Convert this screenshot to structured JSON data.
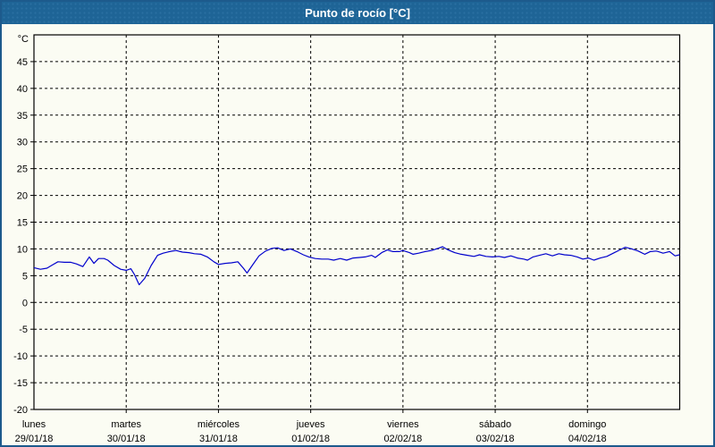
{
  "window": {
    "title": "Punto de rocío [°C]"
  },
  "colors": {
    "header_bg": "#1e6496",
    "header_text": "#ffffff",
    "window_bg": "#fbfcf3",
    "window_border": "#1d5a8c",
    "plot_frame": "#000000",
    "grid": "#000000",
    "line": "#0000cc",
    "label": "#000000"
  },
  "chart_data": {
    "type": "line",
    "title": "Punto de rocío [°C]",
    "ylabel_unit": "°C",
    "ylim": [
      -20,
      50
    ],
    "ytick_step": 5,
    "xlim_days": [
      0,
      7
    ],
    "grid": "dotted",
    "legend": "none",
    "x_categories": [
      {
        "day": "lunes",
        "date": "29/01/18"
      },
      {
        "day": "martes",
        "date": "30/01/18"
      },
      {
        "day": "miércoles",
        "date": "31/01/18"
      },
      {
        "day": "jueves",
        "date": "01/02/18"
      },
      {
        "day": "viernes",
        "date": "02/02/18"
      },
      {
        "day": "sábado",
        "date": "03/02/18"
      },
      {
        "day": "domingo",
        "date": "04/02/18"
      }
    ],
    "series": [
      {
        "name": "Punto de rocío",
        "color": "#0000cc",
        "points": [
          [
            0.0,
            6.5
          ],
          [
            0.07,
            6.2
          ],
          [
            0.14,
            6.4
          ],
          [
            0.2,
            7.0
          ],
          [
            0.26,
            7.6
          ],
          [
            0.33,
            7.5
          ],
          [
            0.4,
            7.5
          ],
          [
            0.46,
            7.2
          ],
          [
            0.53,
            6.7
          ],
          [
            0.6,
            8.5
          ],
          [
            0.65,
            7.3
          ],
          [
            0.7,
            8.2
          ],
          [
            0.76,
            8.2
          ],
          [
            0.8,
            7.9
          ],
          [
            0.87,
            6.9
          ],
          [
            0.94,
            6.2
          ],
          [
            1.0,
            6.0
          ],
          [
            1.05,
            6.3
          ],
          [
            1.09,
            5.2
          ],
          [
            1.14,
            3.3
          ],
          [
            1.2,
            4.5
          ],
          [
            1.27,
            6.9
          ],
          [
            1.34,
            8.8
          ],
          [
            1.4,
            9.2
          ],
          [
            1.47,
            9.5
          ],
          [
            1.54,
            9.7
          ],
          [
            1.61,
            9.4
          ],
          [
            1.68,
            9.3
          ],
          [
            1.74,
            9.1
          ],
          [
            1.81,
            9.0
          ],
          [
            1.88,
            8.5
          ],
          [
            1.95,
            7.6
          ],
          [
            2.0,
            7.1
          ],
          [
            2.07,
            7.3
          ],
          [
            2.14,
            7.4
          ],
          [
            2.21,
            7.6
          ],
          [
            2.27,
            6.4
          ],
          [
            2.31,
            5.5
          ],
          [
            2.37,
            7.0
          ],
          [
            2.44,
            8.7
          ],
          [
            2.51,
            9.6
          ],
          [
            2.58,
            10.1
          ],
          [
            2.64,
            10.2
          ],
          [
            2.71,
            9.7
          ],
          [
            2.78,
            10.0
          ],
          [
            2.85,
            9.5
          ],
          [
            2.92,
            8.9
          ],
          [
            2.98,
            8.5
          ],
          [
            3.05,
            8.2
          ],
          [
            3.12,
            8.1
          ],
          [
            3.19,
            8.1
          ],
          [
            3.25,
            7.9
          ],
          [
            3.32,
            8.2
          ],
          [
            3.39,
            7.9
          ],
          [
            3.46,
            8.3
          ],
          [
            3.53,
            8.4
          ],
          [
            3.59,
            8.5
          ],
          [
            3.66,
            8.8
          ],
          [
            3.7,
            8.4
          ],
          [
            3.77,
            9.3
          ],
          [
            3.83,
            9.8
          ],
          [
            3.89,
            9.5
          ],
          [
            3.96,
            9.5
          ],
          [
            4.0,
            9.7
          ],
          [
            4.07,
            9.3
          ],
          [
            4.11,
            9.0
          ],
          [
            4.17,
            9.2
          ],
          [
            4.24,
            9.5
          ],
          [
            4.31,
            9.7
          ],
          [
            4.38,
            10.1
          ],
          [
            4.43,
            10.4
          ],
          [
            4.49,
            9.8
          ],
          [
            4.56,
            9.3
          ],
          [
            4.63,
            9.0
          ],
          [
            4.7,
            8.8
          ],
          [
            4.77,
            8.6
          ],
          [
            4.83,
            8.9
          ],
          [
            4.9,
            8.6
          ],
          [
            4.97,
            8.5
          ],
          [
            5.04,
            8.6
          ],
          [
            5.1,
            8.4
          ],
          [
            5.17,
            8.7
          ],
          [
            5.24,
            8.3
          ],
          [
            5.31,
            8.1
          ],
          [
            5.35,
            7.9
          ],
          [
            5.41,
            8.5
          ],
          [
            5.48,
            8.8
          ],
          [
            5.55,
            9.1
          ],
          [
            5.62,
            8.7
          ],
          [
            5.69,
            9.1
          ],
          [
            5.75,
            8.9
          ],
          [
            5.82,
            8.8
          ],
          [
            5.89,
            8.5
          ],
          [
            5.95,
            8.1
          ],
          [
            6.01,
            8.3
          ],
          [
            6.07,
            7.9
          ],
          [
            6.14,
            8.3
          ],
          [
            6.21,
            8.6
          ],
          [
            6.28,
            9.2
          ],
          [
            6.35,
            9.8
          ],
          [
            6.41,
            10.3
          ],
          [
            6.48,
            10.0
          ],
          [
            6.55,
            9.6
          ],
          [
            6.62,
            9.0
          ],
          [
            6.68,
            9.5
          ],
          [
            6.75,
            9.6
          ],
          [
            6.82,
            9.2
          ],
          [
            6.89,
            9.5
          ],
          [
            6.95,
            8.7
          ],
          [
            7.0,
            8.9
          ]
        ]
      }
    ]
  }
}
